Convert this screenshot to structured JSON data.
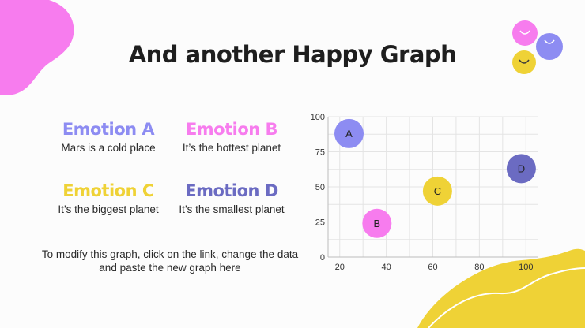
{
  "title": "And another Happy Graph",
  "emotions": [
    {
      "title": "Emotion A",
      "text": "Mars is a cold place"
    },
    {
      "title": "Emotion B",
      "text": "It’s the hottest planet"
    },
    {
      "title": "Emotion C",
      "text": "It’s the biggest planet"
    },
    {
      "title": "Emotion D",
      "text": "It’s the smallest planet"
    }
  ],
  "note": "To modify this graph, click on the link, change the data and paste the new graph here",
  "colors": {
    "pink": "#f77cee",
    "purple": "#8d8cf2",
    "yellow": "#efd236",
    "dark_purple": "#6b6bc2"
  },
  "chart_data": {
    "type": "scatter",
    "xlim": [
      15,
      105
    ],
    "ylim": [
      0,
      100
    ],
    "xticks": [
      20,
      40,
      60,
      80,
      100
    ],
    "yticks": [
      0,
      25,
      50,
      75,
      100
    ],
    "grid": true,
    "points": [
      {
        "label": "A",
        "x": 24,
        "y": 88,
        "color": "#8d8cf2"
      },
      {
        "label": "B",
        "x": 36,
        "y": 24,
        "color": "#f77cee"
      },
      {
        "label": "C",
        "x": 62,
        "y": 47,
        "color": "#efd236"
      },
      {
        "label": "D",
        "x": 98,
        "y": 63,
        "color": "#6b6bc2"
      }
    ]
  }
}
